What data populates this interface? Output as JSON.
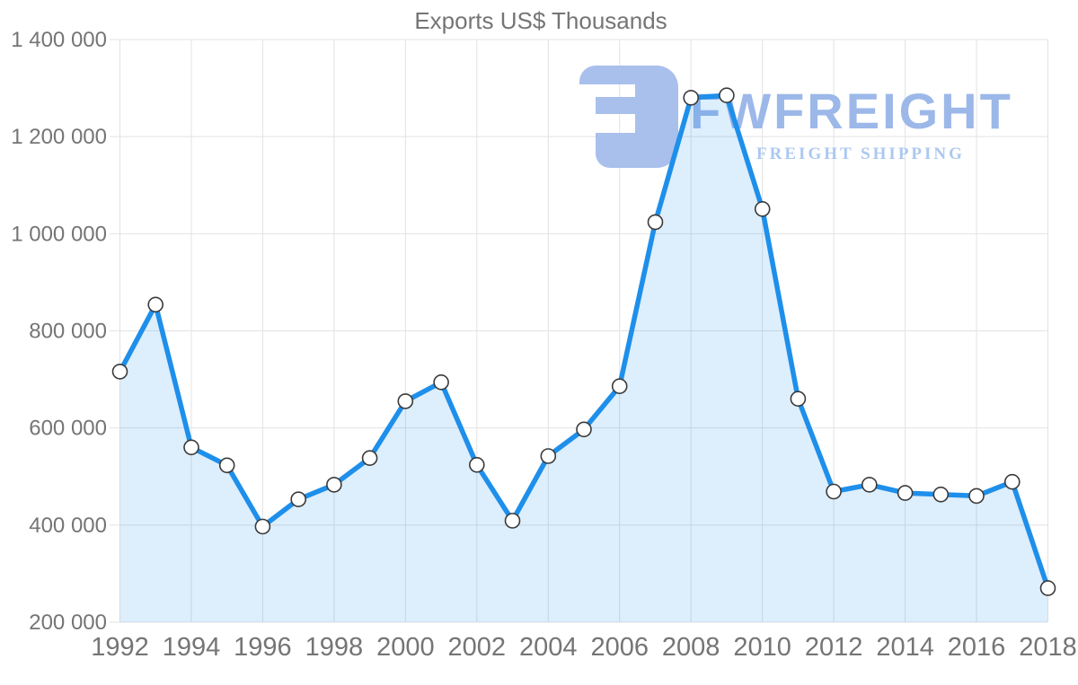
{
  "title": "Exports US$ Thousands",
  "watermark": {
    "brand": "FWFREIGHT",
    "tagline": "FREIGHT SHIPPING",
    "icon": "fwfreight-logo-icon"
  },
  "colors": {
    "line": "#1e8fea",
    "area_fill": "rgba(30,143,234,0.15)",
    "grid": "#e2e2e2",
    "axis_text": "#757575",
    "marker_fill": "#ffffff",
    "marker_stroke": "#3a3a3a",
    "watermark_icon": "#a9c0ec",
    "watermark_brand": "#9cb8e9",
    "watermark_tagline": "#abc8f1"
  },
  "chart_data": {
    "type": "area",
    "title": "Exports US$ Thousands",
    "xlabel": "",
    "ylabel": "",
    "x": [
      1992,
      1993,
      1994,
      1995,
      1996,
      1997,
      1998,
      1999,
      2000,
      2001,
      2002,
      2003,
      2004,
      2005,
      2006,
      2007,
      2008,
      2009,
      2010,
      2011,
      2012,
      2013,
      2014,
      2015,
      2016,
      2017,
      2018
    ],
    "values": [
      716000,
      854000,
      560000,
      523000,
      397000,
      453000,
      483000,
      538000,
      655000,
      694000,
      524000,
      409000,
      542000,
      597000,
      686000,
      1024000,
      1280000,
      1285000,
      1051000,
      660000,
      469000,
      483000,
      466000,
      463000,
      460000,
      489000,
      270000
    ],
    "x_tick_labels": [
      "1992",
      "1994",
      "1996",
      "1998",
      "2000",
      "2002",
      "2004",
      "2006",
      "2008",
      "2010",
      "2012",
      "2014",
      "2016",
      "2018"
    ],
    "x_tick_years": [
      1992,
      1994,
      1996,
      1998,
      2000,
      2002,
      2004,
      2006,
      2008,
      2010,
      2012,
      2014,
      2016,
      2018
    ],
    "y_tick_values": [
      200000,
      400000,
      600000,
      800000,
      1000000,
      1200000,
      1400000
    ],
    "y_tick_labels": [
      "200 000",
      "400 000",
      "600 000",
      "800 000",
      "1 000 000",
      "1 200 000",
      "1 400 000"
    ],
    "ylim": [
      200000,
      1400000
    ],
    "xlim": [
      1992,
      2018
    ],
    "grid": true,
    "legend": false,
    "markers": true
  }
}
